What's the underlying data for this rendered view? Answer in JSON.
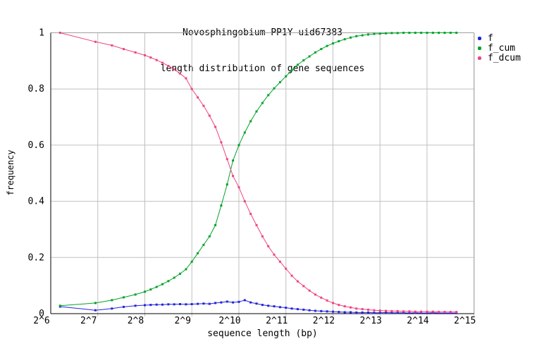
{
  "title_line1": "Novosphingobium PP1Y uid67383",
  "title_line2": "length distribution of gene sequences",
  "chart_data": {
    "type": "line",
    "title": "Novosphingobium PP1Y uid67383 — length distribution of gene sequences",
    "xlabel": "sequence length (bp)",
    "ylabel": "frequency",
    "x_scale": "log2",
    "xlim_exp": [
      6,
      15
    ],
    "ylim": [
      0,
      1
    ],
    "grid": true,
    "legend_position": "outside-top-right",
    "colors": {
      "grid": "#c0c0c0",
      "border": "#a0a0a0",
      "axis": "#000000",
      "background": "#ffffff",
      "text": "#000000"
    },
    "xticks": [
      {
        "exp": 6,
        "label": "2^6"
      },
      {
        "exp": 7,
        "label": "2^7"
      },
      {
        "exp": 8,
        "label": "2^8"
      },
      {
        "exp": 9,
        "label": "2^9"
      },
      {
        "exp": 10,
        "label": "2^10"
      },
      {
        "exp": 11,
        "label": "2^11"
      },
      {
        "exp": 12,
        "label": "2^12"
      },
      {
        "exp": 13,
        "label": "2^13"
      },
      {
        "exp": 14,
        "label": "2^14"
      },
      {
        "exp": 15,
        "label": "2^15"
      }
    ],
    "yticks": [
      {
        "v": 0,
        "label": "0"
      },
      {
        "v": 0.2,
        "label": "0.2"
      },
      {
        "v": 0.4,
        "label": "0.4"
      },
      {
        "v": 0.6,
        "label": "0.6"
      },
      {
        "v": 0.8,
        "label": "0.8"
      },
      {
        "v": 1,
        "label": "1"
      }
    ],
    "x_exponents": [
      6.2,
      6.95,
      7.3,
      7.55,
      7.8,
      8.0,
      8.125,
      8.25,
      8.375,
      8.5,
      8.625,
      8.75,
      8.875,
      9.0,
      9.125,
      9.25,
      9.375,
      9.5,
      9.625,
      9.75,
      9.875,
      10.0,
      10.125,
      10.25,
      10.375,
      10.5,
      10.625,
      10.75,
      10.875,
      11.0,
      11.125,
      11.25,
      11.375,
      11.5,
      11.625,
      11.75,
      11.875,
      12.0,
      12.125,
      12.25,
      12.375,
      12.5,
      12.625,
      12.75,
      12.875,
      13.0,
      13.125,
      13.25,
      13.375,
      13.5,
      13.625,
      13.75,
      13.875,
      14.0,
      14.125,
      14.25,
      14.375,
      14.5,
      14.625
    ],
    "series": [
      {
        "name": "f",
        "color": "#2424e0",
        "values": [
          0.025,
          0.012,
          0.018,
          0.024,
          0.028,
          0.03,
          0.031,
          0.032,
          0.032,
          0.033,
          0.033,
          0.034,
          0.033,
          0.034,
          0.035,
          0.036,
          0.035,
          0.038,
          0.04,
          0.043,
          0.04,
          0.042,
          0.048,
          0.04,
          0.036,
          0.031,
          0.028,
          0.026,
          0.023,
          0.021,
          0.018,
          0.016,
          0.014,
          0.012,
          0.01,
          0.009,
          0.008,
          0.007,
          0.006,
          0.005,
          0.005,
          0.004,
          0.004,
          0.004,
          0.003,
          0.003,
          0.004,
          0.003,
          0.003,
          0.003,
          0.002,
          0.003,
          0.002,
          0.002,
          0.003,
          0.002,
          0.002,
          0.002,
          0.002
        ]
      },
      {
        "name": "f_cum",
        "color": "#00a428",
        "values": [
          0.028,
          0.038,
          0.048,
          0.058,
          0.068,
          0.078,
          0.086,
          0.095,
          0.105,
          0.116,
          0.128,
          0.142,
          0.158,
          0.185,
          0.215,
          0.245,
          0.275,
          0.315,
          0.385,
          0.46,
          0.545,
          0.6,
          0.645,
          0.685,
          0.72,
          0.75,
          0.778,
          0.802,
          0.824,
          0.845,
          0.867,
          0.886,
          0.902,
          0.916,
          0.93,
          0.942,
          0.953,
          0.962,
          0.97,
          0.977,
          0.983,
          0.988,
          0.991,
          0.994,
          0.996,
          0.997,
          0.998,
          0.999,
          0.999,
          1.0,
          1.0,
          1.0,
          1.0,
          1.0,
          1.0,
          1.0,
          1.0,
          1.0,
          1.0
        ]
      },
      {
        "name": "f_dcum",
        "color": "#f04480",
        "values": [
          1.0,
          0.968,
          0.955,
          0.942,
          0.93,
          0.92,
          0.912,
          0.903,
          0.893,
          0.882,
          0.87,
          0.855,
          0.838,
          0.8,
          0.77,
          0.74,
          0.705,
          0.665,
          0.61,
          0.55,
          0.49,
          0.45,
          0.4,
          0.355,
          0.315,
          0.275,
          0.24,
          0.21,
          0.185,
          0.16,
          0.135,
          0.115,
          0.098,
          0.082,
          0.068,
          0.057,
          0.047,
          0.038,
          0.031,
          0.026,
          0.022,
          0.018,
          0.016,
          0.014,
          0.012,
          0.011,
          0.01,
          0.009,
          0.009,
          0.008,
          0.008,
          0.007,
          0.007,
          0.007,
          0.007,
          0.006,
          0.006,
          0.006,
          0.006
        ]
      }
    ]
  }
}
